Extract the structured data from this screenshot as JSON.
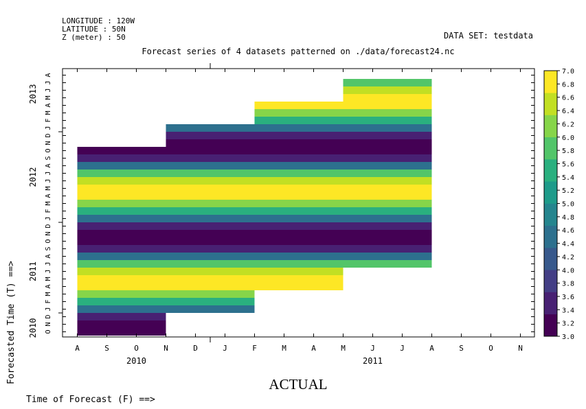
{
  "header": {
    "longitude": "LONGITUDE : 120W",
    "latitude": "LATITUDE : 50N",
    "z": "Z (meter) : 50",
    "dataset": "DATA SET: testdata",
    "title": "Forecast series of 4 datasets patterned on ./data/forecast24.nc"
  },
  "chart_data": {
    "type": "heatmap",
    "title": "Forecast series of 4 datasets patterned on ./data/forecast24.nc",
    "xlabel": "Time of Forecast (F) ==>",
    "ylabel": "Forecasted Time (T) ==>",
    "center_label": "ACTUAL",
    "x_months": [
      "A",
      "S",
      "O",
      "N",
      "D",
      "J",
      "F",
      "M",
      "A",
      "M",
      "J",
      "J",
      "A",
      "S",
      "O",
      "N"
    ],
    "x_years": [
      {
        "label": "2010",
        "month_index": 2
      },
      {
        "label": "2011",
        "month_index": 10
      }
    ],
    "y_months": [
      "O",
      "N",
      "D",
      "J",
      "F",
      "M",
      "A",
      "M",
      "J",
      "J",
      "A",
      "S",
      "O",
      "N",
      "D",
      "J",
      "F",
      "M",
      "A",
      "M",
      "J",
      "J",
      "A",
      "S",
      "O",
      "N",
      "D",
      "J",
      "F",
      "M",
      "A",
      "M",
      "J",
      "J",
      "A"
    ],
    "y_years": [
      {
        "label": "2010",
        "month_index": 0.5
      },
      {
        "label": "2011",
        "month_index": 8
      },
      {
        "label": "2012",
        "month_index": 20.5
      },
      {
        "label": "2013",
        "month_index": 31.5
      }
    ],
    "color_scale": {
      "min": 3.0,
      "max": 7.0,
      "step": 0.2,
      "tick_labels": [
        "3.0",
        "3.2",
        "3.4",
        "3.6",
        "3.8",
        "4.0",
        "4.2",
        "4.4",
        "4.6",
        "4.8",
        "5.0",
        "5.2",
        "5.4",
        "5.6",
        "5.8",
        "6.0",
        "6.2",
        "6.4",
        "6.6",
        "6.8",
        "7.0"
      ],
      "colors": [
        "#440154",
        "#482173",
        "#433e85",
        "#38598c",
        "#2d708e",
        "#25858e",
        "#1e9b8a",
        "#2ab07f",
        "#52c569",
        "#86d549",
        "#c2df23",
        "#fde725"
      ]
    },
    "cells": [
      {
        "x0": 0.5,
        "x1": 3.5,
        "y0": 0,
        "y1": 1,
        "value": 3.0
      },
      {
        "x0": 0.5,
        "x1": 3.5,
        "y0": 1,
        "y1": 2,
        "value": 3.1
      },
      {
        "x0": 0.5,
        "x1": 3.5,
        "y0": 2,
        "y1": 3,
        "value": 3.5
      },
      {
        "x0": 0.5,
        "x1": 6.5,
        "y0": 3,
        "y1": 4,
        "value": 4.6
      },
      {
        "x0": 0.5,
        "x1": 6.5,
        "y0": 4,
        "y1": 5,
        "value": 5.6
      },
      {
        "x0": 0.5,
        "x1": 6.5,
        "y0": 5,
        "y1": 6,
        "value": 6.2
      },
      {
        "x0": 0.5,
        "x1": 9.5,
        "y0": 6,
        "y1": 7,
        "value": 7.0
      },
      {
        "x0": 0.5,
        "x1": 9.5,
        "y0": 7,
        "y1": 8,
        "value": 7.0
      },
      {
        "x0": 0.5,
        "x1": 9.5,
        "y0": 8,
        "y1": 9,
        "value": 6.5
      },
      {
        "x0": 0.5,
        "x1": 12.5,
        "y0": 9,
        "y1": 10,
        "value": 5.7
      },
      {
        "x0": 0.5,
        "x1": 12.5,
        "y0": 10,
        "y1": 11,
        "value": 4.6
      },
      {
        "x0": 0.5,
        "x1": 12.5,
        "y0": 11,
        "y1": 12,
        "value": 3.5
      },
      {
        "x0": 0.5,
        "x1": 12.5,
        "y0": 12,
        "y1": 13,
        "value": 3.0
      },
      {
        "x0": 0.5,
        "x1": 12.5,
        "y0": 13,
        "y1": 14,
        "value": 3.1
      },
      {
        "x0": 0.5,
        "x1": 12.5,
        "y0": 14,
        "y1": 15,
        "value": 3.5
      },
      {
        "x0": 0.5,
        "x1": 12.5,
        "y0": 15,
        "y1": 16,
        "value": 4.6
      },
      {
        "x0": 0.5,
        "x1": 12.5,
        "y0": 16,
        "y1": 17,
        "value": 5.6
      },
      {
        "x0": 0.5,
        "x1": 12.5,
        "y0": 17,
        "y1": 18,
        "value": 6.2
      },
      {
        "x0": 0.5,
        "x1": 12.5,
        "y0": 18,
        "y1": 19,
        "value": 7.0
      },
      {
        "x0": 0.5,
        "x1": 12.5,
        "y0": 19,
        "y1": 20,
        "value": 7.0
      },
      {
        "x0": 0.5,
        "x1": 12.5,
        "y0": 20,
        "y1": 21,
        "value": 6.5
      },
      {
        "x0": 0.5,
        "x1": 12.5,
        "y0": 21,
        "y1": 22,
        "value": 5.7
      },
      {
        "x0": 0.5,
        "x1": 12.5,
        "y0": 22,
        "y1": 23,
        "value": 4.6
      },
      {
        "x0": 0.5,
        "x1": 12.5,
        "y0": 23,
        "y1": 24,
        "value": 3.5
      },
      {
        "x0": 0.5,
        "x1": 12.5,
        "y0": 24,
        "y1": 25,
        "value": 3.0
      },
      {
        "x0": 3.5,
        "x1": 12.5,
        "y0": 25,
        "y1": 26,
        "value": 3.1
      },
      {
        "x0": 3.5,
        "x1": 12.5,
        "y0": 26,
        "y1": 27,
        "value": 3.5
      },
      {
        "x0": 3.5,
        "x1": 12.5,
        "y0": 27,
        "y1": 28,
        "value": 4.6
      },
      {
        "x0": 6.5,
        "x1": 12.5,
        "y0": 28,
        "y1": 29,
        "value": 5.6
      },
      {
        "x0": 6.5,
        "x1": 12.5,
        "y0": 29,
        "y1": 30,
        "value": 6.2
      },
      {
        "x0": 6.5,
        "x1": 12.5,
        "y0": 30,
        "y1": 31,
        "value": 7.0
      },
      {
        "x0": 9.5,
        "x1": 12.5,
        "y0": 31,
        "y1": 32,
        "value": 7.0
      },
      {
        "x0": 9.5,
        "x1": 12.5,
        "y0": 32,
        "y1": 33,
        "value": 6.5
      },
      {
        "x0": 9.5,
        "x1": 12.5,
        "y0": 33,
        "y1": 34,
        "value": 5.7
      }
    ]
  }
}
